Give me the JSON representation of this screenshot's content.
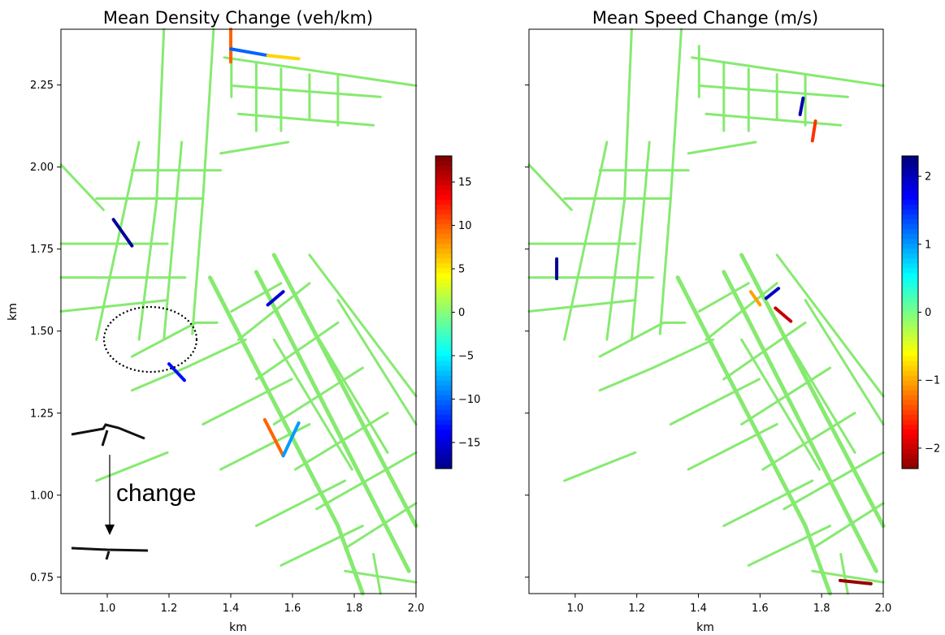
{
  "chart_data": [
    {
      "type": "heatmap",
      "title": "Mean Density Change (veh/km)",
      "xlabel": "km",
      "ylabel": "km",
      "xlim": [
        0.85,
        2.0
      ],
      "ylim": [
        0.7,
        2.42
      ],
      "xticks": [
        {
          "value": 1.0,
          "label": "1.0"
        },
        {
          "value": 1.2,
          "label": "1.2"
        },
        {
          "value": 1.4,
          "label": "1.4"
        },
        {
          "value": 1.6,
          "label": "1.6"
        },
        {
          "value": 1.8,
          "label": "1.8"
        },
        {
          "value": 2.0,
          "label": "2.0"
        }
      ],
      "yticks": [
        {
          "value": 0.75,
          "label": "0.75"
        },
        {
          "value": 1.0,
          "label": "1.00"
        },
        {
          "value": 1.25,
          "label": "1.25"
        },
        {
          "value": 1.5,
          "label": "1.50"
        },
        {
          "value": 1.75,
          "label": "1.75"
        },
        {
          "value": 2.0,
          "label": "2.00"
        },
        {
          "value": 2.25,
          "label": "2.25"
        }
      ],
      "colorbar": {
        "colormap": "jet",
        "min": -18,
        "max": 18,
        "ticks": [
          {
            "value": 15,
            "label": "15"
          },
          {
            "value": 10,
            "label": "10"
          },
          {
            "value": 5,
            "label": "5"
          },
          {
            "value": 0,
            "label": "0"
          },
          {
            "value": -5,
            "label": "−5"
          },
          {
            "value": -10,
            "label": "−10"
          },
          {
            "value": -15,
            "label": "−15"
          }
        ],
        "reversed": false
      },
      "highlighted_segments": [
        {
          "x": [
            1.4,
            1.4
          ],
          "y": [
            2.32,
            2.42
          ],
          "value": 10
        },
        {
          "x": [
            1.4,
            1.52
          ],
          "y": [
            2.36,
            2.34
          ],
          "value": -10
        },
        {
          "x": [
            1.52,
            1.62
          ],
          "y": [
            2.34,
            2.33
          ],
          "value": 6
        },
        {
          "x": [
            1.02,
            1.08
          ],
          "y": [
            1.84,
            1.76
          ],
          "value": -17
        },
        {
          "x": [
            1.51,
            1.57
          ],
          "y": [
            1.23,
            1.12
          ],
          "value": 10
        },
        {
          "x": [
            1.57,
            1.62
          ],
          "y": [
            1.12,
            1.22
          ],
          "value": -8
        },
        {
          "x": [
            1.2,
            1.25
          ],
          "y": [
            1.4,
            1.35
          ],
          "value": -13
        },
        {
          "x": [
            1.52,
            1.57
          ],
          "y": [
            1.58,
            1.62
          ],
          "value": -15
        }
      ],
      "annotation": "change"
    },
    {
      "type": "heatmap",
      "title": "Mean Speed Change (m/s)",
      "xlabel": "km",
      "ylabel": "",
      "xlim": [
        0.85,
        2.0
      ],
      "ylim": [
        0.7,
        2.42
      ],
      "xticks": [
        {
          "value": 1.0,
          "label": "1.0"
        },
        {
          "value": 1.2,
          "label": "1.2"
        },
        {
          "value": 1.4,
          "label": "1.4"
        },
        {
          "value": 1.6,
          "label": "1.6"
        },
        {
          "value": 1.8,
          "label": "1.8"
        },
        {
          "value": 2.0,
          "label": "2.0"
        }
      ],
      "yticks": [
        {
          "value": 0.75,
          "label": ""
        },
        {
          "value": 1.0,
          "label": ""
        },
        {
          "value": 1.25,
          "label": ""
        },
        {
          "value": 1.5,
          "label": ""
        },
        {
          "value": 1.75,
          "label": ""
        },
        {
          "value": 2.0,
          "label": ""
        },
        {
          "value": 2.25,
          "label": ""
        }
      ],
      "colorbar": {
        "colormap": "jet",
        "min": -2.3,
        "max": 2.3,
        "ticks": [
          {
            "value": 2,
            "label": "2"
          },
          {
            "value": 1,
            "label": "1"
          },
          {
            "value": 0,
            "label": "0"
          },
          {
            "value": -1,
            "label": "−1"
          },
          {
            "value": -2,
            "label": "−2"
          }
        ],
        "reversed": true
      },
      "highlighted_segments": [
        {
          "x": [
            0.94,
            0.94
          ],
          "y": [
            1.66,
            1.72
          ],
          "value": 2.2
        },
        {
          "x": [
            1.65,
            1.7
          ],
          "y": [
            1.57,
            1.53
          ],
          "value": -2
        },
        {
          "x": [
            1.57,
            1.6
          ],
          "y": [
            1.62,
            1.58
          ],
          "value": -1
        },
        {
          "x": [
            1.86,
            1.96
          ],
          "y": [
            0.74,
            0.73
          ],
          "value": -2.2
        },
        {
          "x": [
            1.62,
            1.66
          ],
          "y": [
            1.6,
            1.63
          ],
          "value": 2
        },
        {
          "x": [
            1.73,
            1.74
          ],
          "y": [
            2.16,
            2.21
          ],
          "value": 2.1
        },
        {
          "x": [
            1.77,
            1.78
          ],
          "y": [
            2.08,
            2.14
          ],
          "value": -1.5
        }
      ]
    }
  ]
}
